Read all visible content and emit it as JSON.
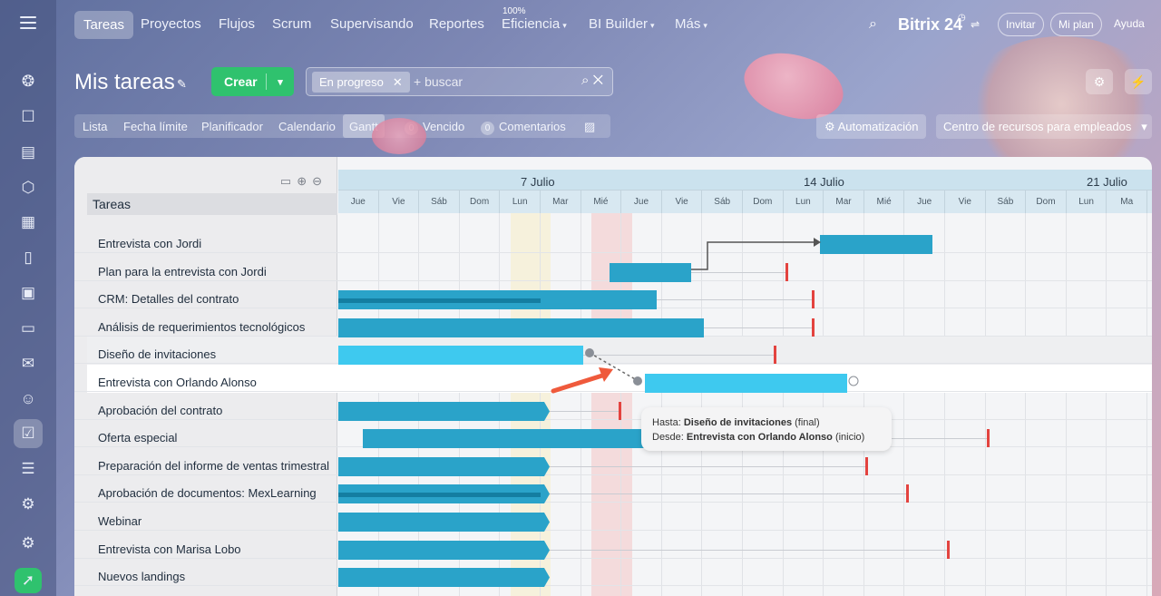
{
  "nav": {
    "items": [
      "Tareas",
      "Proyectos",
      "Flujos",
      "Scrum",
      "Supervisando",
      "Reportes",
      "Eficiencia",
      "BI Builder",
      "Más"
    ],
    "efficiency_badge": "100%",
    "logo": "Bitrix 24",
    "invite": "Invitar",
    "my_plan": "Mi plan",
    "help": "Ayuda"
  },
  "header": {
    "title": "Mis tareas",
    "create_label": "Crear",
    "filter_chip": "En progreso",
    "search_placeholder": "+ buscar"
  },
  "view_tabs": {
    "items": [
      "Lista",
      "Fecha límite",
      "Planificador",
      "Calendario",
      "Gantt"
    ],
    "active": "Gantt",
    "overdue_count": "0",
    "overdue_label": "Vencido",
    "comments_count": "0",
    "comments_label": "Comentarios",
    "automation_label": "Automatización",
    "resource_center": "Centro de recursos para empleados"
  },
  "gantt": {
    "column_header": "Tareas",
    "weeks": [
      "7 Julio",
      "14 Julio",
      "21 Julio"
    ],
    "days": [
      "Jue",
      "Vie",
      "Sáb",
      "Dom",
      "Lun",
      "Mar",
      "Mié",
      "Jue",
      "Vie",
      "Sáb",
      "Dom",
      "Lun",
      "Mar",
      "Mié",
      "Jue",
      "Vie",
      "Sáb",
      "Dom",
      "Lun",
      "Ma"
    ],
    "tasks": [
      "Entrevista con Jordi",
      "Plan para la entrevista con Jordi",
      "CRM: Detalles del contrato",
      "Análisis de requerimientos tecnológicos",
      "Diseño de invitaciones",
      "Entrevista con Orlando Alonso",
      "Aprobación del contrato",
      "Oferta especial",
      "Preparación del informe de ventas trimestral",
      "Aprobación de documentos: MexLearning",
      "Webinar",
      "Entrevista con Marisa Lobo",
      "Nuevos landings"
    ]
  },
  "tooltip": {
    "to_prefix": "Hasta:",
    "to_task": "Diseño de invitaciones",
    "to_suffix": "(final)",
    "from_prefix": "Desde:",
    "from_task": "Entrevista con Orlando Alonso",
    "from_suffix": "(inicio)"
  }
}
